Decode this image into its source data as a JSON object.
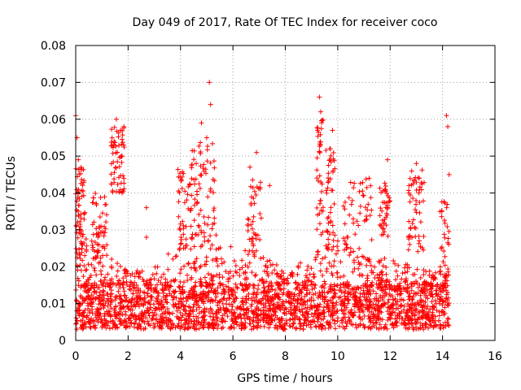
{
  "chart_data": {
    "type": "scatter",
    "title": "Day 049 of 2017, Rate Of TEC Index for receiver coco",
    "xlabel": "GPS time / hours",
    "ylabel": "ROTI / TECUs",
    "xlim": [
      0,
      16
    ],
    "ylim": [
      0,
      0.08
    ],
    "xticks": [
      "0",
      "2",
      "4",
      "6",
      "8",
      "10",
      "12",
      "14",
      "16"
    ],
    "yticks": [
      "0",
      "0.01",
      "0.02",
      "0.03",
      "0.04",
      "0.05",
      "0.06",
      "0.07",
      "0.08"
    ],
    "grid": true,
    "marker": "+",
    "color": "#ff0000",
    "x_extent": [
      0,
      14.25
    ],
    "notable_points": [
      {
        "x": 0.0,
        "y": 0.061
      },
      {
        "x": 0.05,
        "y": 0.055
      },
      {
        "x": 0.1,
        "y": 0.049
      },
      {
        "x": 1.55,
        "y": 0.06
      },
      {
        "x": 1.45,
        "y": 0.053
      },
      {
        "x": 1.75,
        "y": 0.05
      },
      {
        "x": 2.7,
        "y": 0.036
      },
      {
        "x": 2.7,
        "y": 0.028
      },
      {
        "x": 4.8,
        "y": 0.059
      },
      {
        "x": 5.1,
        "y": 0.07
      },
      {
        "x": 5.15,
        "y": 0.064
      },
      {
        "x": 5.0,
        "y": 0.055
      },
      {
        "x": 6.9,
        "y": 0.051
      },
      {
        "x": 6.65,
        "y": 0.047
      },
      {
        "x": 7.4,
        "y": 0.042
      },
      {
        "x": 9.3,
        "y": 0.066
      },
      {
        "x": 9.35,
        "y": 0.062
      },
      {
        "x": 9.8,
        "y": 0.057
      },
      {
        "x": 9.7,
        "y": 0.052
      },
      {
        "x": 11.2,
        "y": 0.044
      },
      {
        "x": 11.9,
        "y": 0.049
      },
      {
        "x": 13.0,
        "y": 0.048
      },
      {
        "x": 13.1,
        "y": 0.04
      },
      {
        "x": 14.15,
        "y": 0.061
      },
      {
        "x": 14.2,
        "y": 0.058
      },
      {
        "x": 14.25,
        "y": 0.045
      }
    ],
    "clusters": [
      {
        "x_range": [
          0.0,
          0.35
        ],
        "y_range": [
          0.02,
          0.047
        ],
        "n": 70
      },
      {
        "x_range": [
          1.35,
          1.85
        ],
        "y_range": [
          0.04,
          0.058
        ],
        "n": 60
      },
      {
        "x_range": [
          0.6,
          1.2
        ],
        "y_range": [
          0.022,
          0.04
        ],
        "n": 50
      },
      {
        "x_range": [
          3.9,
          4.4
        ],
        "y_range": [
          0.024,
          0.047
        ],
        "n": 40
      },
      {
        "x_range": [
          4.4,
          5.3
        ],
        "y_range": [
          0.028,
          0.054
        ],
        "n": 70
      },
      {
        "x_range": [
          6.5,
          7.1
        ],
        "y_range": [
          0.024,
          0.044
        ],
        "n": 40
      },
      {
        "x_range": [
          9.2,
          9.45
        ],
        "y_range": [
          0.028,
          0.06
        ],
        "n": 40
      },
      {
        "x_range": [
          9.55,
          9.9
        ],
        "y_range": [
          0.024,
          0.052
        ],
        "n": 45
      },
      {
        "x_range": [
          10.2,
          11.3
        ],
        "y_range": [
          0.02,
          0.044
        ],
        "n": 55
      },
      {
        "x_range": [
          11.6,
          12.0
        ],
        "y_range": [
          0.028,
          0.043
        ],
        "n": 40
      },
      {
        "x_range": [
          12.7,
          13.3
        ],
        "y_range": [
          0.024,
          0.047
        ],
        "n": 55
      },
      {
        "x_range": [
          13.9,
          14.25
        ],
        "y_range": [
          0.015,
          0.038
        ],
        "n": 35
      }
    ],
    "baseline": {
      "x_range": [
        0,
        14.25
      ],
      "y_typical_range": [
        0.003,
        0.015
      ],
      "envelope": [
        {
          "x": 0,
          "y_max": 0.03
        },
        {
          "x": 1,
          "y_max": 0.024
        },
        {
          "x": 2,
          "y_max": 0.019
        },
        {
          "x": 3,
          "y_max": 0.02
        },
        {
          "x": 4,
          "y_max": 0.027
        },
        {
          "x": 5,
          "y_max": 0.031
        },
        {
          "x": 6,
          "y_max": 0.027
        },
        {
          "x": 7,
          "y_max": 0.026
        },
        {
          "x": 8,
          "y_max": 0.018
        },
        {
          "x": 9,
          "y_max": 0.024
        },
        {
          "x": 10,
          "y_max": 0.027
        },
        {
          "x": 11,
          "y_max": 0.025
        },
        {
          "x": 12,
          "y_max": 0.022
        },
        {
          "x": 13,
          "y_max": 0.02
        },
        {
          "x": 14,
          "y_max": 0.019
        }
      ],
      "n": 2600
    }
  }
}
